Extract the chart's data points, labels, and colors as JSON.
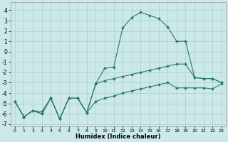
{
  "xlabel": "Humidex (Indice chaleur)",
  "background_color": "#cce8e8",
  "grid_color": "#aacfcf",
  "line_color": "#2a7a6a",
  "xlim": [
    -0.5,
    23.5
  ],
  "ylim": [
    -7.2,
    4.8
  ],
  "yticks": [
    -7,
    -6,
    -5,
    -4,
    -3,
    -2,
    -1,
    0,
    1,
    2,
    3,
    4
  ],
  "xticks": [
    0,
    1,
    2,
    3,
    4,
    5,
    6,
    7,
    8,
    9,
    10,
    11,
    12,
    13,
    14,
    15,
    16,
    17,
    18,
    19,
    20,
    21,
    22,
    23
  ],
  "line1_x": [
    0,
    1,
    2,
    3,
    4,
    5,
    6,
    7,
    8,
    9,
    10,
    11,
    12,
    13,
    14,
    15,
    16,
    17,
    18,
    19,
    20,
    21,
    22,
    23
  ],
  "line1_y": [
    -4.8,
    -6.3,
    -5.7,
    -6.0,
    -4.5,
    -6.5,
    -4.5,
    -4.5,
    -5.9,
    -3.1,
    -1.6,
    -1.5,
    2.3,
    3.3,
    3.8,
    3.5,
    3.2,
    2.4,
    1.0,
    1.0,
    -2.5,
    -2.6,
    -2.6,
    -3.0
  ],
  "line2_x": [
    0,
    1,
    2,
    3,
    4,
    5,
    6,
    7,
    8,
    9,
    10,
    11,
    12,
    13,
    14,
    15,
    16,
    17,
    18,
    19,
    20,
    21,
    22,
    23
  ],
  "line2_y": [
    -4.8,
    -6.3,
    -5.7,
    -6.0,
    -4.5,
    -6.5,
    -4.5,
    -4.5,
    -5.9,
    -3.1,
    -2.8,
    -2.6,
    -2.4,
    -2.2,
    -2.0,
    -1.8,
    -1.6,
    -1.4,
    -1.2,
    -1.2,
    -2.5,
    -2.6,
    -2.6,
    -3.0
  ],
  "line3_x": [
    0,
    1,
    2,
    3,
    4,
    5,
    6,
    7,
    8,
    9,
    10,
    11,
    12,
    13,
    14,
    15,
    16,
    17,
    18,
    19,
    20,
    21,
    22,
    23
  ],
  "line3_y": [
    -4.8,
    -6.3,
    -5.7,
    -5.8,
    -4.5,
    -6.5,
    -4.5,
    -4.5,
    -5.9,
    -4.8,
    -4.5,
    -4.3,
    -4.0,
    -3.8,
    -3.6,
    -3.4,
    -3.2,
    -3.0,
    -3.5,
    -3.5,
    -3.5,
    -3.5,
    -3.6,
    -3.1
  ]
}
